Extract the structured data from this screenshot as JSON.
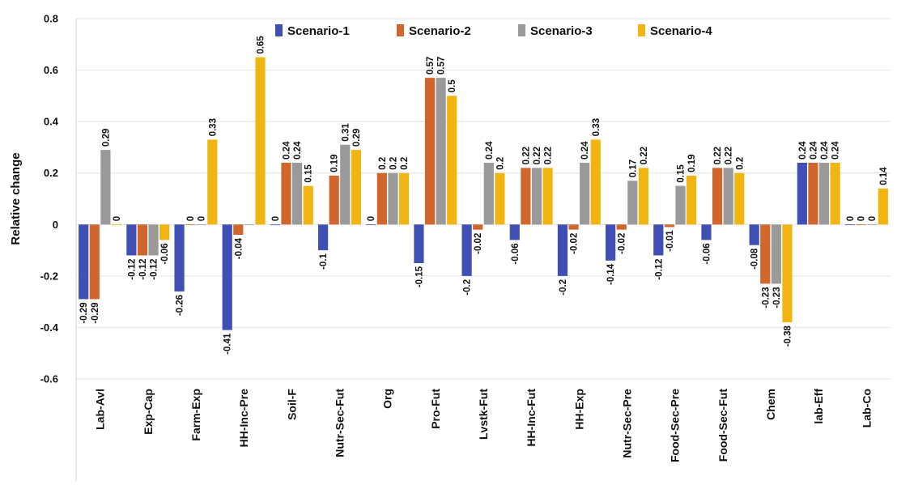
{
  "chart_data": {
    "type": "bar",
    "ylabel": "Relative change",
    "xlabel": "",
    "ylim": [
      -0.6,
      0.8
    ],
    "yticks": [
      "-0.6",
      "-0.4",
      "-0.2",
      "0",
      "0.2",
      "0.4",
      "0.6",
      "0.8"
    ],
    "grid": true,
    "legend_position": "top",
    "categories": [
      "Lab-Avl",
      "Exp-Cap",
      "Farm-Exp",
      "HH-Inc-Pre",
      "Soil-F",
      "Nutr-Sec-Fut",
      "Org",
      "Pro-Fut",
      "Lvstk-Fut",
      "HH-Inc-Fut",
      "HH-Exp",
      "Nutr-Sec-Pre",
      "Food-Sec-Pre",
      "Food-Sec-Fut",
      "Chem",
      "lab-Eff",
      "Lab-Co"
    ],
    "series": [
      {
        "name": "Scenario-1",
        "color": "#3f4fb3",
        "values": [
          -0.29,
          -0.12,
          -0.26,
          -0.41,
          0,
          -0.1,
          0,
          -0.15,
          -0.2,
          -0.06,
          -0.2,
          -0.14,
          -0.12,
          -0.06,
          -0.08,
          0.24,
          0
        ],
        "labels": [
          "-0.29",
          "-0.12",
          "-0.26",
          "-0.41",
          "0",
          "-0.1",
          "0",
          "-0.15",
          "-0.2",
          "-0.06",
          "-0.2",
          "-0.14",
          "-0.12",
          "-0.06",
          "-0.08",
          "0.24",
          "0"
        ]
      },
      {
        "name": "Scenario-2",
        "color": "#d0662b",
        "values": [
          -0.29,
          -0.12,
          0,
          -0.04,
          0.24,
          0.19,
          0.2,
          0.57,
          -0.02,
          0.22,
          -0.02,
          -0.02,
          -0.01,
          0.22,
          -0.23,
          0.24,
          0
        ],
        "labels": [
          "-0.29",
          "-0.12",
          "0",
          "-0.04",
          "0.24",
          "0.19",
          "0.2",
          "0.57",
          "-0.02",
          "0.22",
          "-0.02",
          "-0.02",
          "-0.01",
          "0.22",
          "-0.23",
          "0.24",
          "0"
        ]
      },
      {
        "name": "Scenario-3",
        "color": "#9a9a9a",
        "values": [
          0.29,
          -0.12,
          0,
          0,
          0.24,
          0.31,
          0.2,
          0.57,
          0.24,
          0.22,
          0.24,
          0.17,
          0.15,
          0.22,
          -0.23,
          0.24,
          0
        ],
        "labels": [
          "0.29",
          "-0.12",
          "0",
          "",
          "0.24",
          "0.31",
          "0.2",
          "0.57",
          "0.24",
          "0.22",
          "0.24",
          "0.17",
          "0.15",
          "0.22",
          "-0.23",
          "0.24",
          "0"
        ]
      },
      {
        "name": "Scenario-4",
        "color": "#f1b512",
        "values": [
          0,
          -0.06,
          0.33,
          0.65,
          0.15,
          0.29,
          0.2,
          0.5,
          0.2,
          0.22,
          0.33,
          0.22,
          0.19,
          0.2,
          -0.38,
          0.24,
          0.14
        ],
        "labels": [
          "0",
          "-0.06",
          "0.33",
          "0.65",
          "0.15",
          "0.29",
          "0.2",
          "0.5",
          "0.2",
          "0.22",
          "0.33",
          "0.22",
          "0.19",
          "0.2",
          "-0.38",
          "0.24",
          "0.14"
        ]
      }
    ]
  }
}
